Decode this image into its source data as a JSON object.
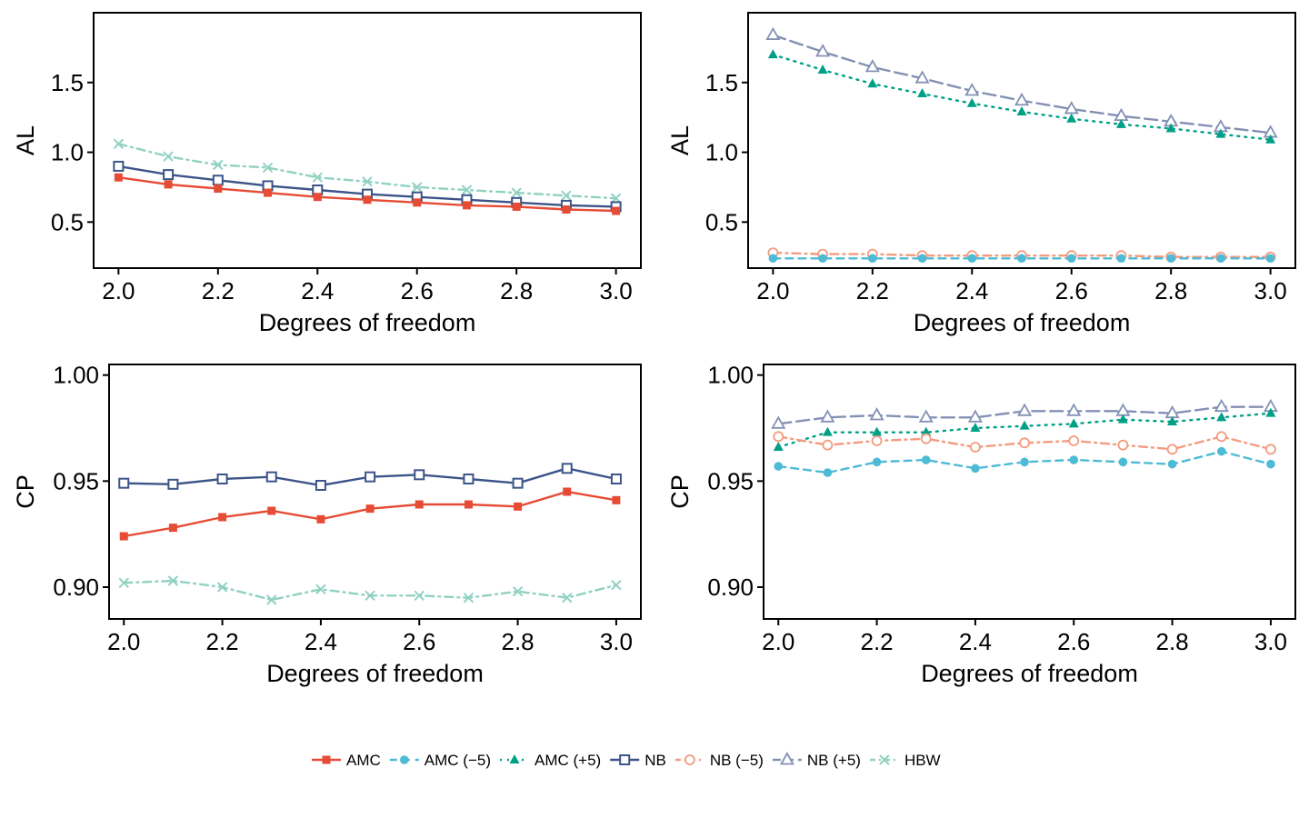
{
  "x_values": [
    2.0,
    2.1,
    2.2,
    2.3,
    2.4,
    2.5,
    2.6,
    2.7,
    2.8,
    2.9,
    3.0
  ],
  "series_styles": {
    "AMC": {
      "label": "AMC",
      "color": "#E64B35",
      "dash": "solid",
      "marker": "square-filled"
    },
    "AMC (-5)": {
      "label": "AMC (−5)",
      "color": "#4DBBD5",
      "dash": "dashed",
      "marker": "circle-filled"
    },
    "AMC (+5)": {
      "label": "AMC (+5)",
      "color": "#00A087",
      "dash": "dotted",
      "marker": "triangle-filled"
    },
    "NB": {
      "label": "NB",
      "color": "#3C5488",
      "dash": "solid",
      "marker": "square-open"
    },
    "NB (-5)": {
      "label": "NB (−5)",
      "color": "#F39B7F",
      "dash": "dotdash",
      "marker": "circle-open"
    },
    "NB (+5)": {
      "label": "NB (+5)",
      "color": "#8491B4",
      "dash": "longdash",
      "marker": "triangle-open"
    },
    "HBW": {
      "label": "HBW",
      "color": "#91D1C2",
      "dash": "dotdash",
      "marker": "cross"
    }
  },
  "legend": [
    "AMC",
    "AMC (-5)",
    "AMC (+5)",
    "NB",
    "NB (-5)",
    "NB (+5)",
    "HBW"
  ],
  "chart_data": [
    {
      "type": "line",
      "panel": "top-left",
      "xlabel": "Degrees of freedom",
      "ylabel": "AL",
      "xlim": [
        1.95,
        3.05
      ],
      "ylim": [
        0.17,
        2.0
      ],
      "xticks": [
        2.0,
        2.2,
        2.4,
        2.6,
        2.8,
        3.0
      ],
      "xtick_labels": [
        "2.0",
        "2.2",
        "2.4",
        "2.6",
        "2.8",
        "3.0"
      ],
      "yticks": [
        0.5,
        1.0,
        1.5
      ],
      "ytick_labels": [
        "0.5",
        "1.0",
        "1.5"
      ],
      "series": [
        {
          "name": "HBW",
          "values": [
            1.06,
            0.97,
            0.91,
            0.89,
            0.82,
            0.79,
            0.75,
            0.73,
            0.71,
            0.69,
            0.67
          ]
        },
        {
          "name": "NB",
          "values": [
            0.9,
            0.84,
            0.8,
            0.76,
            0.73,
            0.7,
            0.68,
            0.66,
            0.64,
            0.62,
            0.61
          ]
        },
        {
          "name": "AMC",
          "values": [
            0.82,
            0.77,
            0.74,
            0.71,
            0.68,
            0.66,
            0.64,
            0.62,
            0.61,
            0.59,
            0.58
          ]
        }
      ]
    },
    {
      "type": "line",
      "panel": "top-right",
      "xlabel": "Degrees of freedom",
      "ylabel": "AL",
      "xlim": [
        1.95,
        3.05
      ],
      "ylim": [
        0.17,
        2.0
      ],
      "xticks": [
        2.0,
        2.2,
        2.4,
        2.6,
        2.8,
        3.0
      ],
      "xtick_labels": [
        "2.0",
        "2.2",
        "2.4",
        "2.6",
        "2.8",
        "3.0"
      ],
      "yticks": [
        0.5,
        1.0,
        1.5
      ],
      "ytick_labels": [
        "0.5",
        "1.0",
        "1.5"
      ],
      "series": [
        {
          "name": "NB (+5)",
          "values": [
            1.84,
            1.72,
            1.61,
            1.53,
            1.44,
            1.37,
            1.31,
            1.26,
            1.22,
            1.18,
            1.14
          ]
        },
        {
          "name": "AMC (+5)",
          "values": [
            1.7,
            1.59,
            1.49,
            1.42,
            1.35,
            1.29,
            1.24,
            1.2,
            1.17,
            1.13,
            1.09
          ]
        },
        {
          "name": "NB (-5)",
          "values": [
            0.28,
            0.27,
            0.27,
            0.26,
            0.26,
            0.26,
            0.26,
            0.26,
            0.25,
            0.25,
            0.25
          ]
        },
        {
          "name": "AMC (-5)",
          "values": [
            0.24,
            0.24,
            0.24,
            0.24,
            0.24,
            0.24,
            0.24,
            0.24,
            0.24,
            0.24,
            0.24
          ]
        }
      ]
    },
    {
      "type": "line",
      "panel": "bottom-left",
      "xlabel": "Degrees of freedom",
      "ylabel": "CP",
      "xlim": [
        1.97,
        3.05
      ],
      "ylim": [
        0.885,
        1.005
      ],
      "xticks": [
        2.0,
        2.2,
        2.4,
        2.6,
        2.8,
        3.0
      ],
      "xtick_labels": [
        "2.0",
        "2.2",
        "2.4",
        "2.6",
        "2.8",
        "3.0"
      ],
      "yticks": [
        0.9,
        0.95,
        1.0
      ],
      "ytick_labels": [
        "0.90",
        "0.95",
        "1.00"
      ],
      "series": [
        {
          "name": "NB",
          "values": [
            0.949,
            0.9485,
            0.951,
            0.952,
            0.948,
            0.952,
            0.953,
            0.951,
            0.949,
            0.956,
            0.951
          ]
        },
        {
          "name": "AMC",
          "values": [
            0.924,
            0.928,
            0.933,
            0.936,
            0.932,
            0.937,
            0.939,
            0.939,
            0.938,
            0.945,
            0.941
          ]
        },
        {
          "name": "HBW",
          "values": [
            0.902,
            0.903,
            0.9,
            0.894,
            0.899,
            0.896,
            0.896,
            0.895,
            0.898,
            0.895,
            0.901
          ]
        }
      ]
    },
    {
      "type": "line",
      "panel": "bottom-right",
      "xlabel": "Degrees of freedom",
      "ylabel": "CP",
      "xlim": [
        1.97,
        3.05
      ],
      "ylim": [
        0.885,
        1.005
      ],
      "xticks": [
        2.0,
        2.2,
        2.4,
        2.6,
        2.8,
        3.0
      ],
      "xtick_labels": [
        "2.0",
        "2.2",
        "2.4",
        "2.6",
        "2.8",
        "3.0"
      ],
      "yticks": [
        0.9,
        0.95,
        1.0
      ],
      "ytick_labels": [
        "0.90",
        "0.95",
        "1.00"
      ],
      "series": [
        {
          "name": "NB (+5)",
          "values": [
            0.977,
            0.98,
            0.981,
            0.98,
            0.98,
            0.983,
            0.983,
            0.983,
            0.982,
            0.985,
            0.985
          ]
        },
        {
          "name": "AMC (+5)",
          "values": [
            0.966,
            0.973,
            0.973,
            0.973,
            0.975,
            0.976,
            0.977,
            0.979,
            0.978,
            0.98,
            0.982
          ]
        },
        {
          "name": "NB (-5)",
          "values": [
            0.971,
            0.967,
            0.969,
            0.97,
            0.966,
            0.968,
            0.969,
            0.967,
            0.965,
            0.971,
            0.965
          ]
        },
        {
          "name": "AMC (-5)",
          "values": [
            0.957,
            0.954,
            0.959,
            0.96,
            0.956,
            0.959,
            0.96,
            0.959,
            0.958,
            0.964,
            0.958
          ]
        }
      ]
    }
  ]
}
